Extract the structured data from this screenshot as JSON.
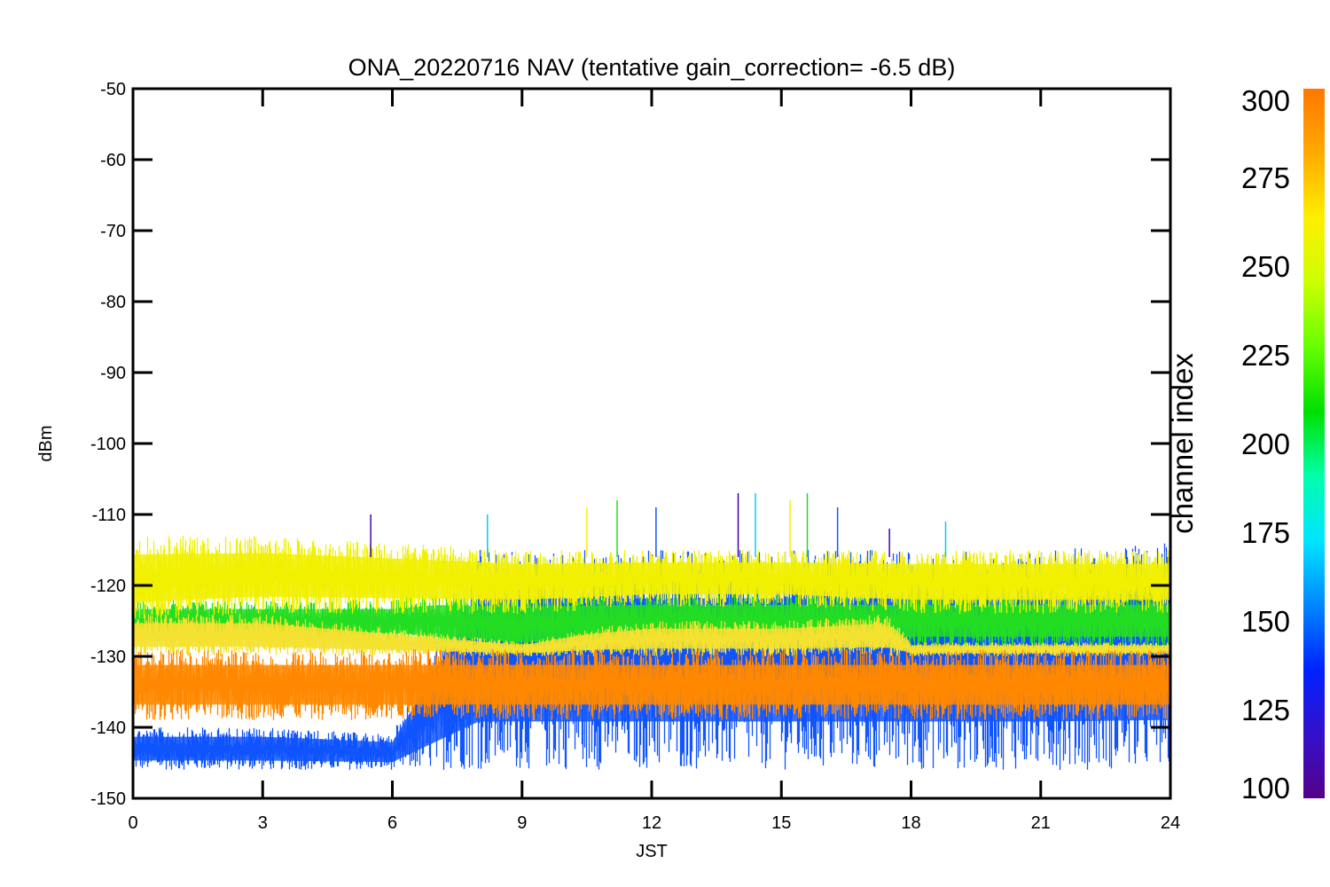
{
  "chart_data": {
    "type": "line",
    "title": "ONA_20220716 NAV (tentative gain_correction= -6.5 dB)",
    "xlabel": "JST",
    "ylabel": "dBm",
    "xlim": [
      0,
      24
    ],
    "ylim": [
      -150,
      -50
    ],
    "xticks": [
      "0",
      "3",
      "6",
      "9",
      "12",
      "15",
      "18",
      "21",
      "24"
    ],
    "yticks": [
      "-50",
      "-60",
      "-70",
      "-80",
      "-90",
      "-100",
      "-110",
      "-120",
      "-130",
      "-140",
      "-150"
    ],
    "grid": false,
    "colorbar": {
      "label": "channel index",
      "range": [
        100,
        300
      ],
      "ticks": [
        "300",
        "275",
        "250",
        "225",
        "200",
        "175",
        "150",
        "125",
        "100"
      ],
      "colors": [
        "#550088",
        "#3311cc",
        "#0022ff",
        "#0088ff",
        "#00e5ff",
        "#00ffaa",
        "#00e000",
        "#66ff00",
        "#ccff00",
        "#ffee00",
        "#ffaa00",
        "#ff7700"
      ]
    },
    "series": [
      {
        "channel_index": 290,
        "color": "#ff8800",
        "x": [
          0,
          3,
          6,
          9,
          12,
          15,
          18,
          21,
          24
        ],
        "y_low": [
          -139,
          -139,
          -139,
          -139,
          -139,
          -139,
          -139,
          -139,
          -139
        ],
        "y_high": [
          -129,
          -129,
          -129,
          -129,
          -129,
          -129,
          -129,
          -129,
          -129
        ]
      },
      {
        "channel_index": 270,
        "color": "#f0f000",
        "x": [
          0,
          3,
          6,
          9,
          12,
          15,
          18,
          21,
          24
        ],
        "y_low": [
          -125,
          -124,
          -124,
          -124,
          -123,
          -123,
          -124,
          -124,
          -124
        ],
        "y_high": [
          -113,
          -113,
          -114,
          -115,
          -115,
          -115,
          -115,
          -115,
          -115
        ]
      },
      {
        "channel_index": 275,
        "color": "#f3e030",
        "x": [
          0,
          3,
          6,
          9,
          10.5,
          12,
          15,
          17.5,
          18,
          21,
          24
        ],
        "y_low": [
          -130,
          -130,
          -130,
          -130,
          -130,
          -130,
          -130,
          -130,
          -130,
          -130,
          -130
        ],
        "y_high": [
          -124,
          -124,
          -126,
          -128,
          -126,
          -125,
          -125,
          -124,
          -128,
          -128,
          -128
        ]
      },
      {
        "channel_index": 240,
        "color": "#22dd22",
        "x": [
          0,
          3,
          6,
          7,
          9,
          12,
          15,
          18,
          21,
          24
        ],
        "y_low": [
          -128,
          -128,
          -128,
          -129,
          -130,
          -129,
          -129,
          -129,
          -129,
          -129
        ],
        "y_high": [
          -122,
          -122,
          -122,
          -121,
          -121,
          -121,
          -121,
          -121,
          -121,
          -121
        ]
      },
      {
        "channel_index": 145,
        "color": "#1155ff",
        "x": [
          0,
          3,
          6,
          8,
          9,
          12,
          15,
          18,
          21,
          24
        ],
        "y_low": [
          -146,
          -146,
          -146,
          -146,
          -146,
          -146,
          -146,
          -146,
          -146,
          -146
        ],
        "y_high": [
          -140,
          -140,
          -141,
          -115,
          -115,
          -115,
          -115,
          -115,
          -115,
          -114
        ]
      }
    ],
    "spikes": [
      {
        "x": 5.5,
        "y": -110
      },
      {
        "x": 8.2,
        "y": -110
      },
      {
        "x": 10.5,
        "y": -109
      },
      {
        "x": 11.2,
        "y": -108
      },
      {
        "x": 12.1,
        "y": -109
      },
      {
        "x": 14.0,
        "y": -107
      },
      {
        "x": 14.4,
        "y": -107
      },
      {
        "x": 15.2,
        "y": -108
      },
      {
        "x": 15.6,
        "y": -107
      },
      {
        "x": 16.3,
        "y": -109
      },
      {
        "x": 17.5,
        "y": -112
      },
      {
        "x": 18.8,
        "y": -111
      }
    ]
  }
}
